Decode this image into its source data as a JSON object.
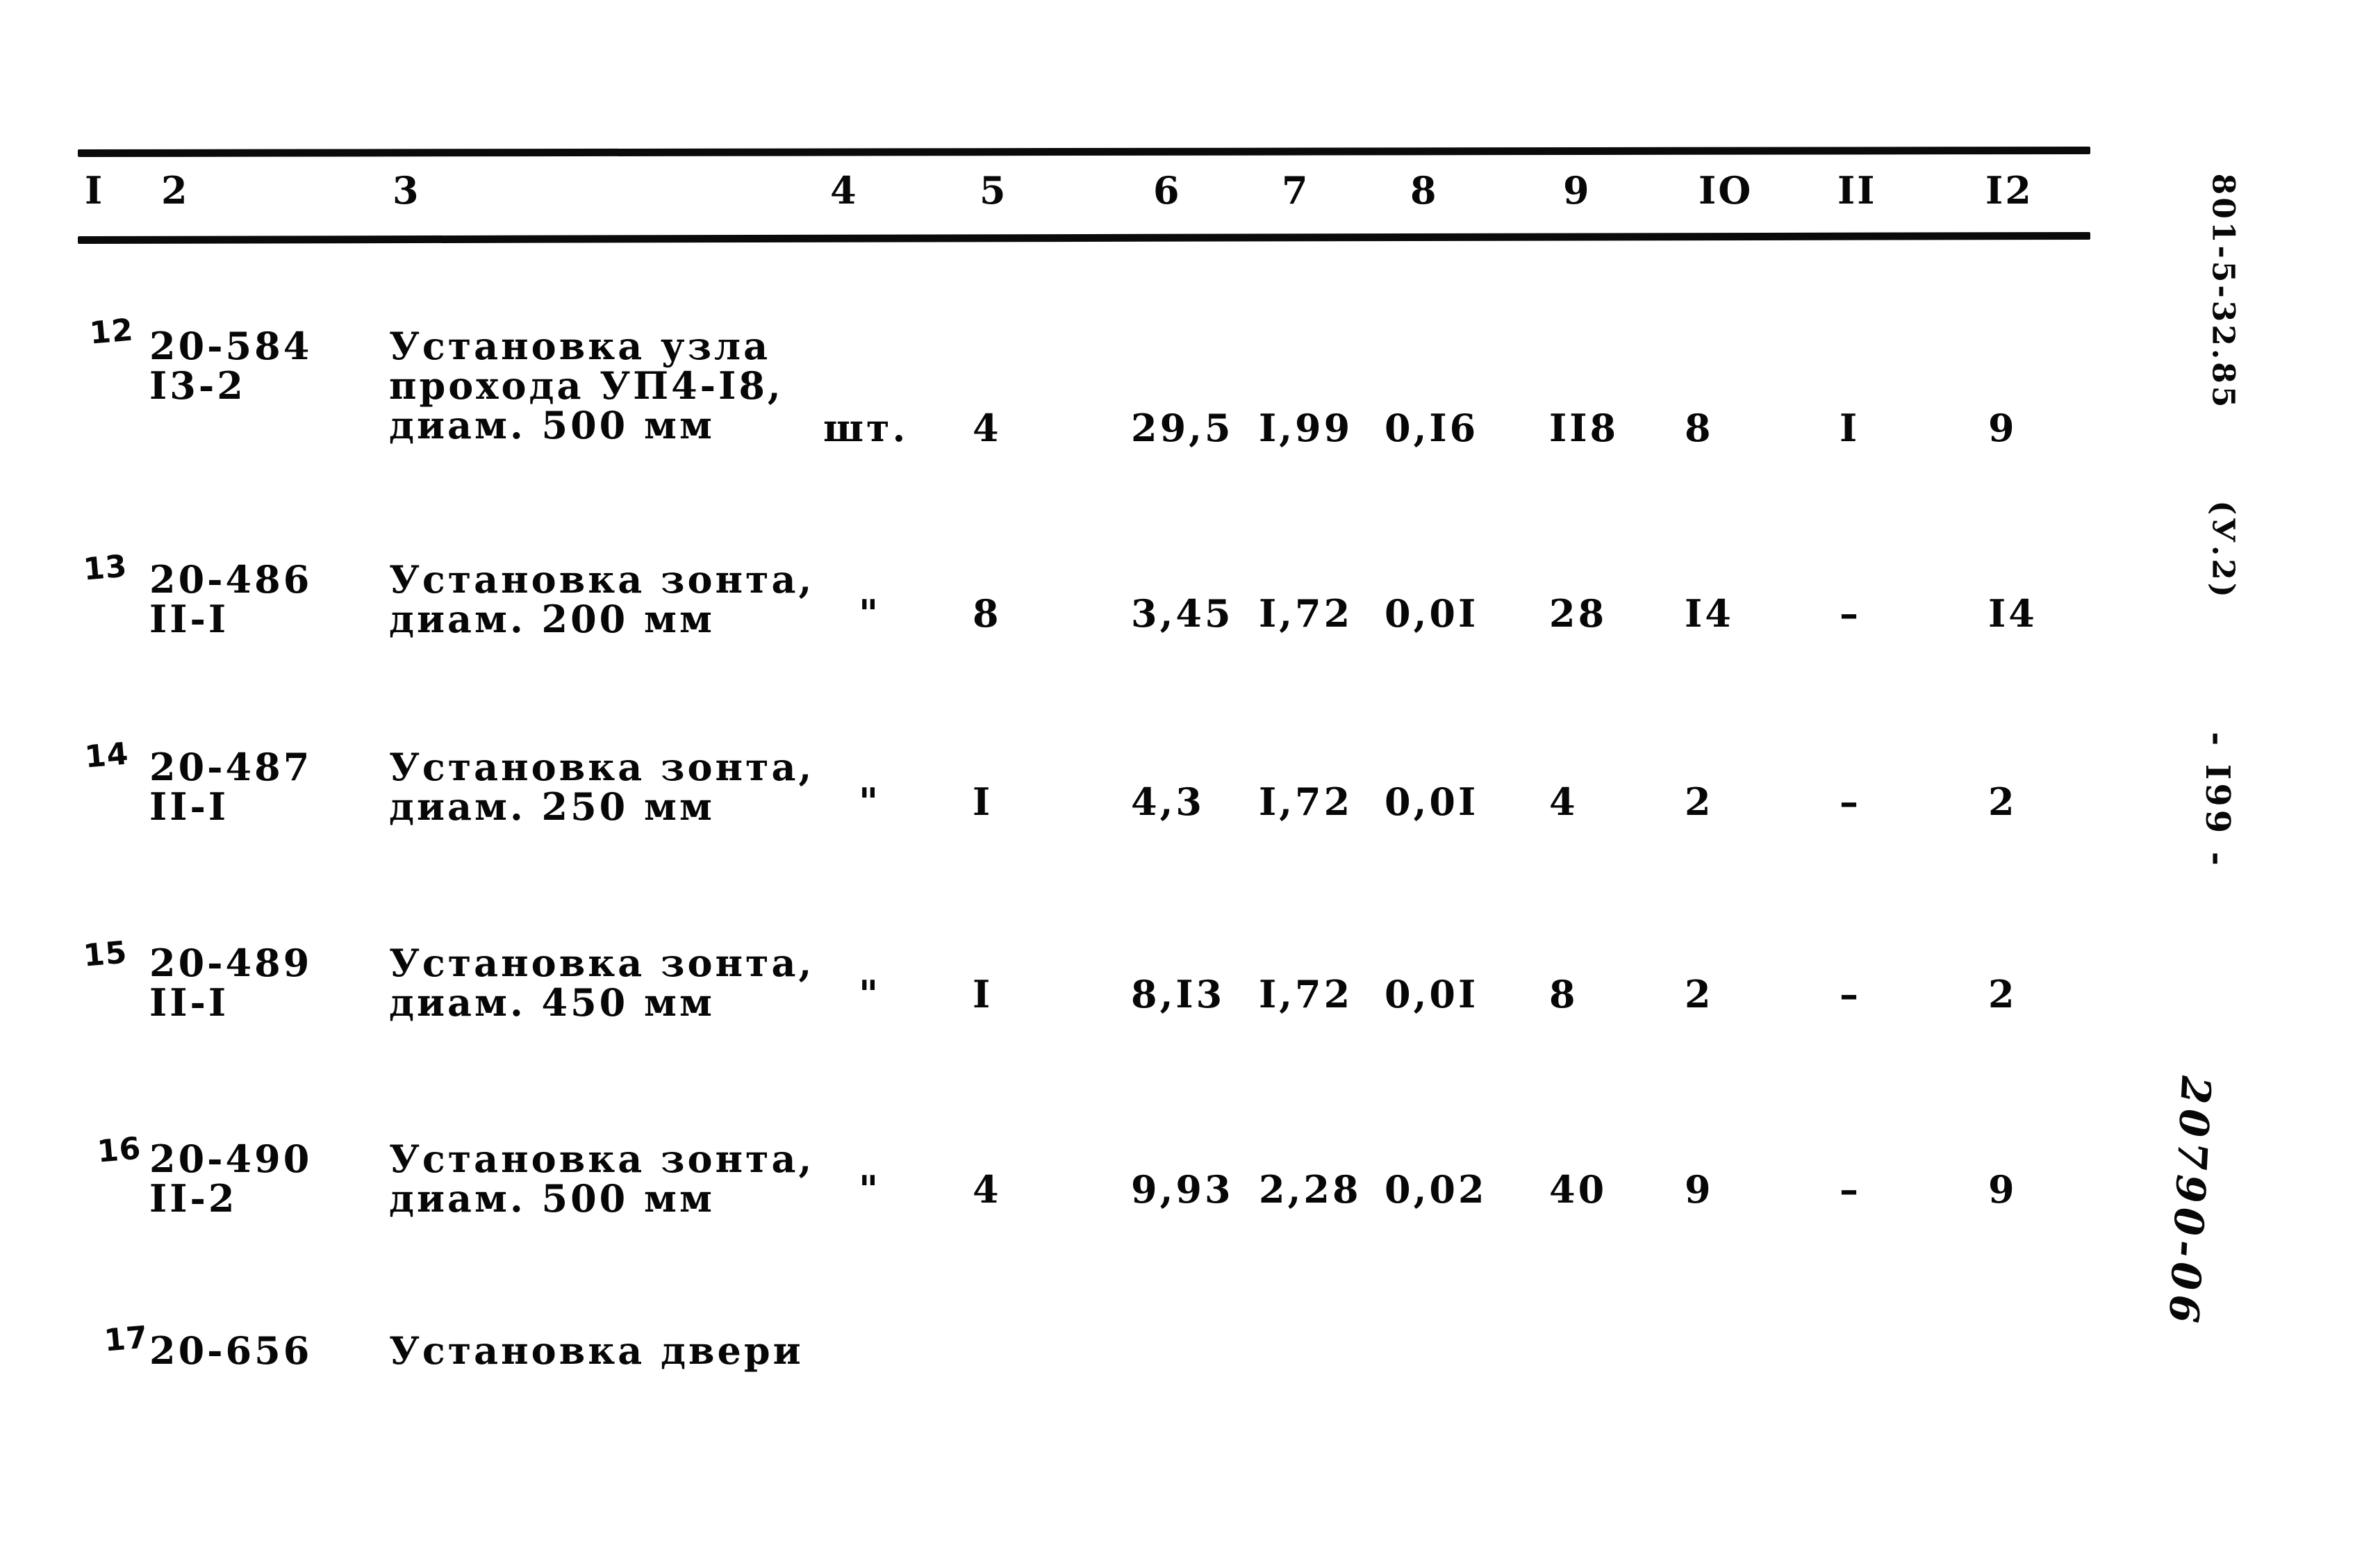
{
  "document": {
    "header": {
      "columns": [
        "I",
        "2",
        "3",
        "4",
        "5",
        "6",
        "7",
        "8",
        "9",
        "IO",
        "II",
        "I2"
      ]
    },
    "rows": [
      {
        "num": "12",
        "code": [
          "20-584",
          "I3-2"
        ],
        "desc": [
          "Установка узла",
          "прохода УП4-I8,",
          "диам. 500 мм"
        ],
        "unit": "шт.",
        "values": [
          "4",
          "29,5",
          "I,99",
          "0,I6",
          "II8",
          "8",
          "I",
          "9"
        ]
      },
      {
        "num": "13",
        "code": [
          "20-486",
          "II-I"
        ],
        "desc": [
          "Установка зонта,",
          "диам. 200 мм"
        ],
        "unit": "\"",
        "values": [
          "8",
          "3,45",
          "I,72",
          "0,0I",
          "28",
          "I4",
          "–",
          "I4"
        ]
      },
      {
        "num": "14",
        "code": [
          "20-487",
          "II-I"
        ],
        "desc": [
          "Установка зонта,",
          "диам. 250 мм"
        ],
        "unit": "\"",
        "values": [
          "I",
          "4,3",
          "I,72",
          "0,0I",
          "4",
          "2",
          "–",
          "2"
        ]
      },
      {
        "num": "15",
        "code": [
          "20-489",
          "II-I"
        ],
        "desc": [
          "Установка зонта,",
          "диам. 450 мм"
        ],
        "unit": "\"",
        "values": [
          "I",
          "8,I3",
          "I,72",
          "0,0I",
          "8",
          "2",
          "–",
          "2"
        ]
      },
      {
        "num": "16",
        "code": [
          "20-490",
          "II-2"
        ],
        "desc": [
          "Установка зонта,",
          "диам. 500 мм"
        ],
        "unit": "\"",
        "values": [
          "4",
          "9,93",
          "2,28",
          "0,02",
          "40",
          "9",
          "–",
          "9"
        ]
      },
      {
        "num": "17",
        "code": [
          "20-656"
        ],
        "desc": [
          "Установка двери"
        ],
        "unit": "",
        "values": []
      }
    ],
    "margin": {
      "ref_code": "801-5-32.85",
      "volume": "(У.2)",
      "page_number": "- I99 -",
      "stamp": "20790-06"
    },
    "ink_color": "#070707",
    "paper_color": "#ffffff"
  }
}
